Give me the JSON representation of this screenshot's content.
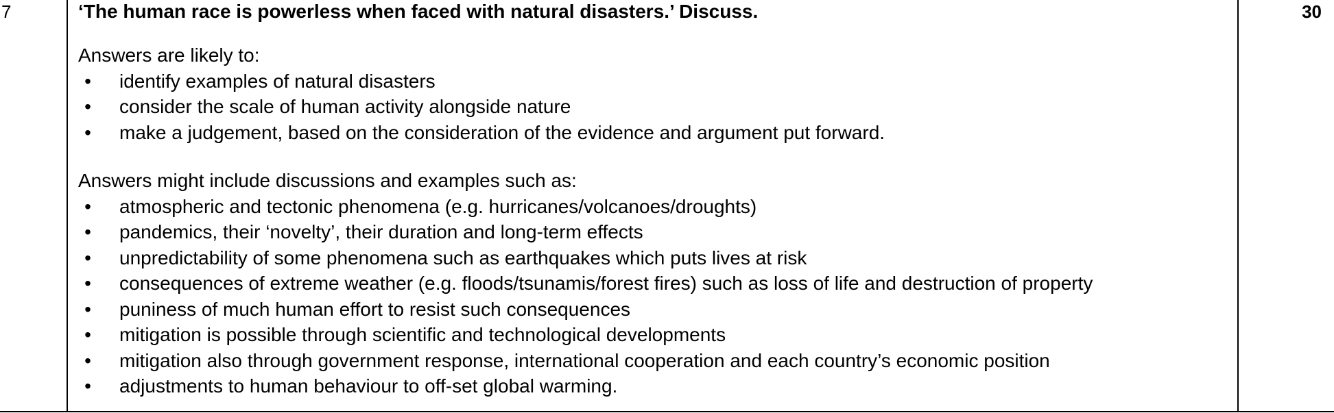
{
  "question": {
    "number": "7",
    "marks": "30",
    "title": "‘The human race is powerless when faced with natural disasters.’ Discuss."
  },
  "sections": [
    {
      "intro": "Answers are likely to:",
      "bullets": [
        "identify examples of natural disasters",
        "consider the scale of human activity alongside nature",
        "make a judgement, based on the consideration of the evidence and argument put forward."
      ]
    },
    {
      "intro": "Answers might include discussions and examples such as:",
      "bullets": [
        "atmospheric and tectonic phenomena (e.g. hurricanes/volcanoes/droughts)",
        "pandemics, their ‘novelty’, their duration and long-term effects",
        "unpredictability of some phenomena such as earthquakes which puts lives at risk",
        "consequences of extreme weather (e.g. floods/tsunamis/forest fires) such as loss of life and destruction of property",
        "puniness of much human effort to resist such consequences",
        "mitigation is possible through scientific and technological developments",
        "mitigation also through government response, international cooperation and each country’s economic position",
        "adjustments to human behaviour to off-set global warming."
      ]
    }
  ],
  "bullet_glyph": "•"
}
